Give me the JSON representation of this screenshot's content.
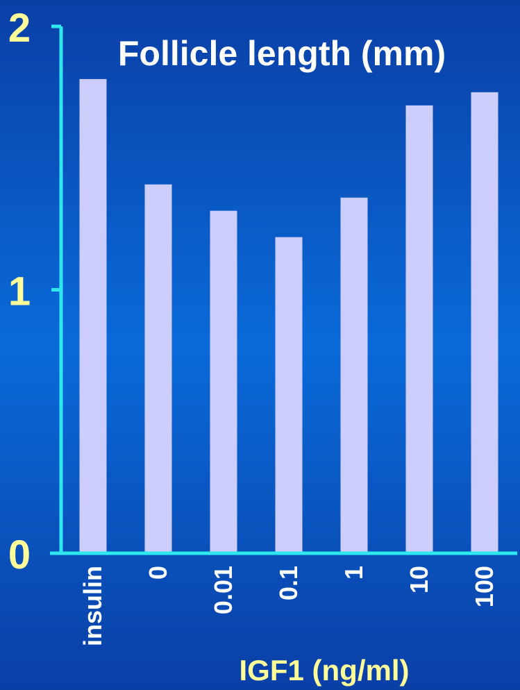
{
  "colors": {
    "background_top": "#0a3fa6",
    "background_mid": "#0a6ad8",
    "background_bottom": "#0a3fa6",
    "axis": "#2ee8ee",
    "bar": "#cccdfb",
    "title": "#ffffff",
    "tick_label_y": "#ffff99",
    "tick_label_x": "#ffffff",
    "axis_label": "#ffff99"
  },
  "chart_data": {
    "type": "bar",
    "title": "Follicle length (mm)",
    "xlabel": "IGF1 (ng/ml)",
    "ylabel": "",
    "categories": [
      "insulin",
      "0",
      "0.01",
      "0.1",
      "1",
      "10",
      "100"
    ],
    "values": [
      1.8,
      1.4,
      1.3,
      1.2,
      1.35,
      1.7,
      1.75
    ],
    "ylim": [
      0,
      2
    ],
    "yticks": [
      "0",
      "1",
      "2"
    ],
    "grid": false,
    "legend": "none"
  }
}
